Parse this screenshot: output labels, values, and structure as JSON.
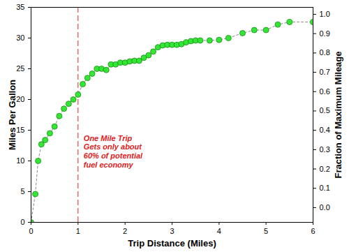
{
  "chart_data": {
    "type": "line",
    "marker": "circle",
    "line_style": "dashed",
    "color": "#33e633",
    "x_label": "Trip Distance (Miles)",
    "y_label": "Miles Per Gallon",
    "y2_label": "Fraction of Maximum Mileage",
    "x": [
      0,
      0.09,
      0.15,
      0.22,
      0.3,
      0.4,
      0.5,
      0.6,
      0.7,
      0.8,
      0.9,
      1.0,
      1.1,
      1.2,
      1.3,
      1.4,
      1.5,
      1.6,
      1.7,
      1.8,
      1.9,
      2.0,
      2.1,
      2.2,
      2.3,
      2.4,
      2.5,
      2.6,
      2.7,
      2.8,
      2.9,
      3.0,
      3.1,
      3.2,
      3.3,
      3.4,
      3.5,
      3.6,
      3.8,
      4.0,
      4.2,
      4.5,
      4.75,
      5.0,
      5.25,
      5.5,
      6.0
    ],
    "values": [
      0,
      4.6,
      10,
      12.7,
      13.4,
      14.5,
      15.6,
      17.3,
      18.5,
      19.3,
      20,
      20.8,
      22.5,
      23.5,
      24.2,
      25,
      25,
      24.8,
      25.7,
      25.7,
      26,
      26,
      26.2,
      26.3,
      26.3,
      26.8,
      27.2,
      27.8,
      28.5,
      28.8,
      28.9,
      28.9,
      28.9,
      29,
      29.3,
      29.5,
      29.6,
      29.6,
      29.6,
      29.7,
      30,
      30.8,
      31.3,
      31.3,
      32.2,
      32.6,
      32.6
    ],
    "xlim": [
      0,
      6
    ],
    "xticks": [
      0,
      1,
      2,
      3,
      4,
      5,
      6
    ],
    "ylim": [
      0,
      35
    ],
    "yticks": [
      0,
      5,
      10,
      15,
      20,
      25,
      30,
      35
    ],
    "y2lim": [
      -0.076,
      1.036
    ],
    "y2ticks": [
      {
        "value": 0,
        "label": "0.0"
      },
      0.1,
      0.2,
      0.3,
      0.4,
      0.5,
      0.6,
      0.7,
      0.8,
      0.9,
      {
        "value": 1,
        "label": "1.0"
      }
    ],
    "grid": false,
    "annotations": [
      {
        "x": 1,
        "color": "#e02020",
        "line_style": "dashed",
        "text": "One Mile Trip\nGets only about\n60% of potential\nfuel economy"
      }
    ]
  }
}
